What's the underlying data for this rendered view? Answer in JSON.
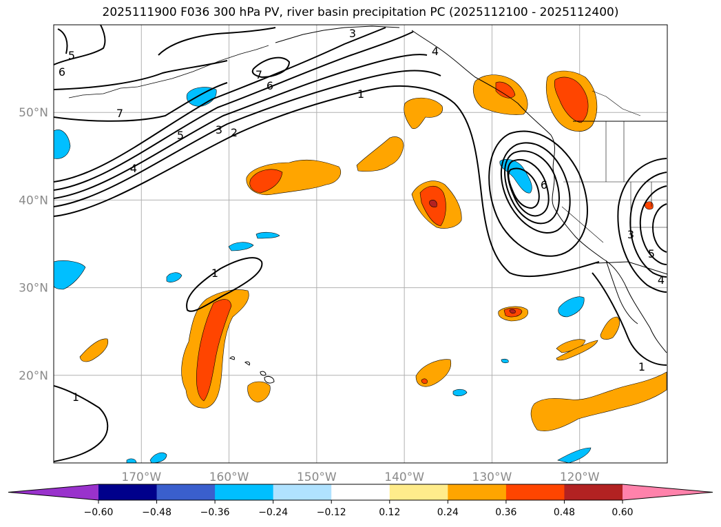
{
  "chart_data": {
    "type": "map",
    "title": "2025111900 F036 300 hPa PV, river basin precipitation PC (2025112100 - 2025112400)",
    "lon_range": [
      -180,
      -110
    ],
    "lat_range": [
      10,
      60
    ],
    "x_ticks": [
      {
        "lon": -170,
        "label": "170°W"
      },
      {
        "lon": -160,
        "label": "160°W"
      },
      {
        "lon": -150,
        "label": "150°W"
      },
      {
        "lon": -140,
        "label": "140°W"
      },
      {
        "lon": -130,
        "label": "130°W"
      },
      {
        "lon": -120,
        "label": "120°W"
      }
    ],
    "y_ticks": [
      {
        "lat": 50,
        "label": "50°N"
      },
      {
        "lat": 40,
        "label": "40°N"
      },
      {
        "lat": 30,
        "label": "30°N"
      },
      {
        "lat": 20,
        "label": "20°N"
      }
    ],
    "colorbar": {
      "levels": [
        -0.6,
        -0.48,
        -0.36,
        -0.24,
        -0.12,
        0.12,
        0.24,
        0.36,
        0.48,
        0.6
      ],
      "labels": [
        "−0.60",
        "−0.48",
        "−0.36",
        "−0.24",
        "−0.12",
        "0.12",
        "0.24",
        "0.36",
        "0.48",
        "0.60"
      ],
      "colors": [
        "#9932CC",
        "#00008B",
        "#3A5FCD",
        "#00BFFF",
        "#B0E2FF",
        "#FFFFFF",
        "#FFEC8B",
        "#FFA500",
        "#FF4500",
        "#B22222",
        "#FF82AB"
      ],
      "extend": "both"
    },
    "pv_contour_labels": [
      "1",
      "2",
      "3",
      "4",
      "5",
      "6",
      "7"
    ],
    "shaded_field": "river basin precipitation PC",
    "contour_field": "300 hPa PV"
  }
}
